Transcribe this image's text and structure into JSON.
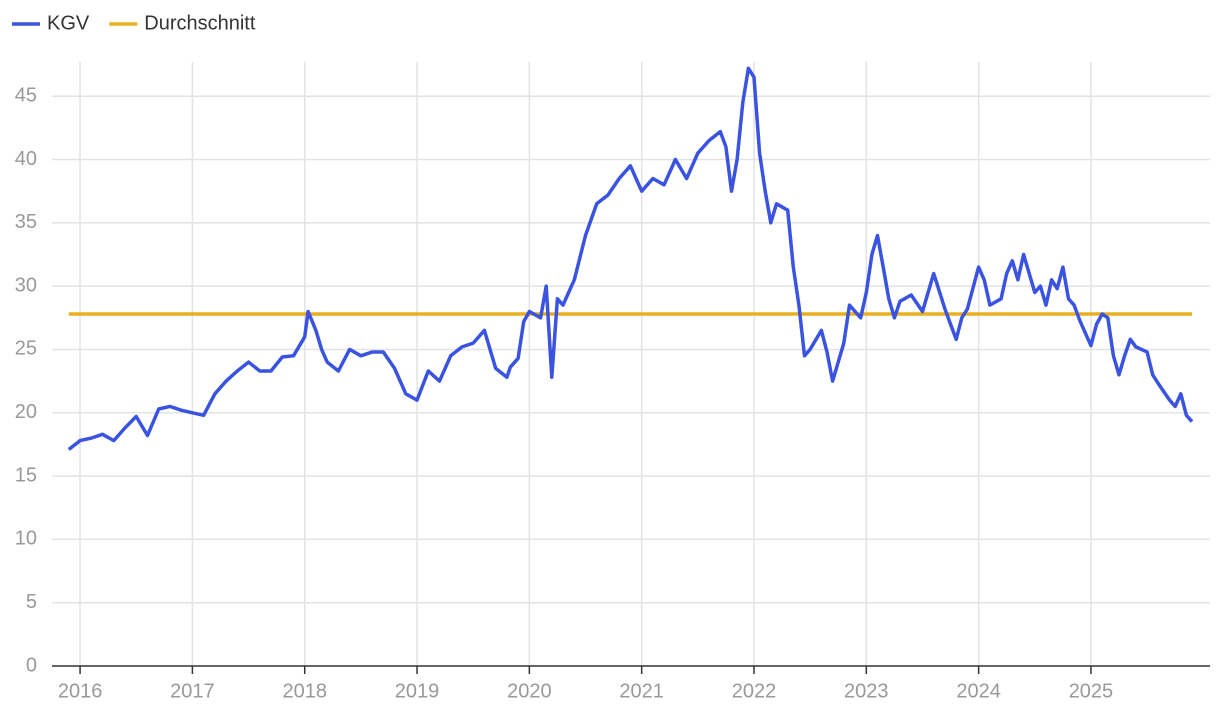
{
  "chart_data": {
    "type": "line",
    "series": [
      {
        "name": "KGV",
        "color": "#3a53e0",
        "x": [
          2015.9,
          2016.0,
          2016.1,
          2016.2,
          2016.3,
          2016.4,
          2016.5,
          2016.6,
          2016.7,
          2016.8,
          2016.9,
          2017.0,
          2017.1,
          2017.2,
          2017.3,
          2017.4,
          2017.5,
          2017.6,
          2017.7,
          2017.8,
          2017.9,
          2018.0,
          2018.03,
          2018.1,
          2018.15,
          2018.2,
          2018.3,
          2018.4,
          2018.5,
          2018.6,
          2018.7,
          2018.8,
          2018.9,
          2019.0,
          2019.1,
          2019.2,
          2019.3,
          2019.4,
          2019.5,
          2019.6,
          2019.7,
          2019.8,
          2019.83,
          2019.9,
          2019.95,
          2020.0,
          2020.1,
          2020.15,
          2020.2,
          2020.25,
          2020.3,
          2020.4,
          2020.5,
          2020.6,
          2020.7,
          2020.8,
          2020.9,
          2021.0,
          2021.1,
          2021.2,
          2021.3,
          2021.4,
          2021.5,
          2021.6,
          2021.7,
          2021.75,
          2021.8,
          2021.85,
          2021.9,
          2021.95,
          2022.0,
          2022.05,
          2022.1,
          2022.15,
          2022.2,
          2022.3,
          2022.35,
          2022.4,
          2022.45,
          2022.5,
          2022.6,
          2022.65,
          2022.7,
          2022.8,
          2022.85,
          2022.9,
          2022.95,
          2023.0,
          2023.05,
          2023.1,
          2023.15,
          2023.2,
          2023.25,
          2023.3,
          2023.4,
          2023.5,
          2023.55,
          2023.6,
          2023.7,
          2023.75,
          2023.8,
          2023.85,
          2023.9,
          2024.0,
          2024.05,
          2024.1,
          2024.2,
          2024.25,
          2024.3,
          2024.35,
          2024.4,
          2024.5,
          2024.55,
          2024.6,
          2024.65,
          2024.7,
          2024.75,
          2024.8,
          2024.85,
          2024.9,
          2025.0,
          2025.05,
          2025.1,
          2025.15,
          2025.2,
          2025.25,
          2025.3,
          2025.35,
          2025.4,
          2025.5,
          2025.55,
          2025.6,
          2025.7,
          2025.75,
          2025.8,
          2025.85,
          2025.9
        ],
        "values": [
          17.1,
          17.8,
          18.0,
          18.3,
          17.8,
          18.8,
          19.7,
          18.2,
          20.3,
          20.5,
          20.2,
          20.0,
          19.8,
          21.5,
          22.5,
          23.3,
          24.0,
          23.3,
          23.3,
          24.4,
          24.5,
          26.0,
          28.0,
          26.5,
          25.0,
          24.0,
          23.3,
          25.0,
          24.5,
          24.8,
          24.8,
          23.5,
          21.5,
          21.0,
          23.3,
          22.5,
          24.5,
          25.2,
          25.5,
          26.5,
          23.5,
          22.8,
          23.6,
          24.3,
          27.2,
          28.0,
          27.5,
          30.0,
          22.8,
          29.0,
          28.5,
          30.5,
          34.0,
          36.5,
          37.2,
          38.5,
          39.5,
          37.5,
          38.5,
          38.0,
          40.0,
          38.5,
          40.5,
          41.5,
          42.2,
          41.0,
          37.5,
          40.0,
          44.5,
          47.2,
          46.5,
          40.5,
          37.5,
          35.0,
          36.5,
          36.0,
          31.5,
          28.5,
          24.5,
          25.0,
          26.5,
          24.8,
          22.5,
          25.5,
          28.5,
          28.0,
          27.5,
          29.5,
          32.5,
          34.0,
          31.5,
          29.0,
          27.5,
          28.8,
          29.3,
          28.0,
          29.5,
          31.0,
          28.2,
          27.0,
          25.8,
          27.5,
          28.2,
          31.5,
          30.5,
          28.5,
          29.0,
          31.0,
          32.0,
          30.5,
          32.5,
          29.5,
          30.0,
          28.5,
          30.5,
          29.8,
          31.5,
          29.0,
          28.5,
          27.3,
          25.3,
          27.0,
          27.8,
          27.5,
          24.5,
          23.0,
          24.5,
          25.8,
          25.2,
          24.8,
          23.0,
          22.3,
          21.0,
          20.5,
          21.5,
          19.8,
          19.3
        ]
      },
      {
        "name": "Durchschnitt",
        "color": "#e8b020",
        "x": [
          2015.9,
          2025.9
        ],
        "values": [
          27.8,
          27.8
        ]
      }
    ],
    "xlim": [
      2015.75,
      2026.06
    ],
    "xticks": [
      2016,
      2017,
      2018,
      2019,
      2020,
      2021,
      2022,
      2023,
      2024,
      2025
    ],
    "ylim": [
      0,
      47.7
    ],
    "yticks": [
      0,
      5,
      10,
      15,
      20,
      25,
      30,
      35,
      40,
      45
    ],
    "grid": true,
    "legend": "top-left"
  }
}
